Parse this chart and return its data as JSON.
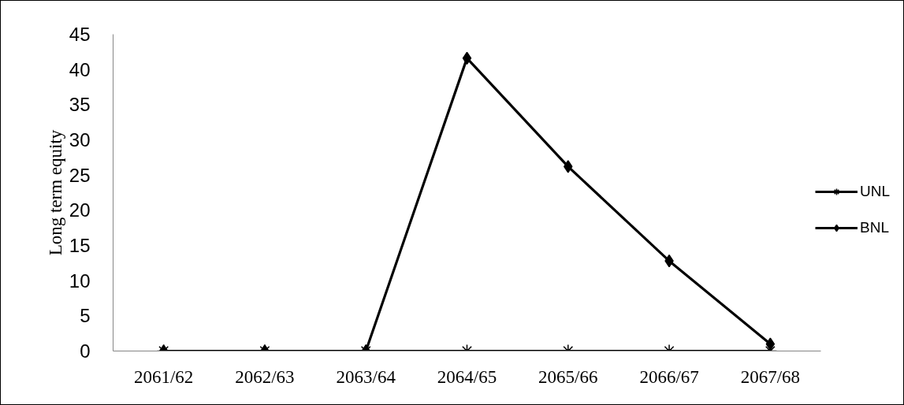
{
  "chart_data": {
    "type": "line",
    "ylabel": "Long term equity",
    "categories": [
      "2061/62",
      "2062/63",
      "2063/64",
      "2064/65",
      "2065/66",
      "2066/67",
      "2067/68"
    ],
    "series": [
      {
        "name": "UNL",
        "color": "#000000",
        "marker": "cross",
        "values": [
          0,
          0,
          0,
          0,
          0,
          0,
          0
        ]
      },
      {
        "name": "BNL",
        "color": "#000000",
        "marker": "diamond",
        "values": [
          0,
          0,
          0,
          41.6,
          26.2,
          12.8,
          1.0
        ]
      }
    ],
    "ylim": [
      0,
      45
    ],
    "yticks": [
      0,
      5,
      10,
      15,
      20,
      25,
      30,
      35,
      40,
      45
    ],
    "legend": "right",
    "line_style": "solid"
  }
}
